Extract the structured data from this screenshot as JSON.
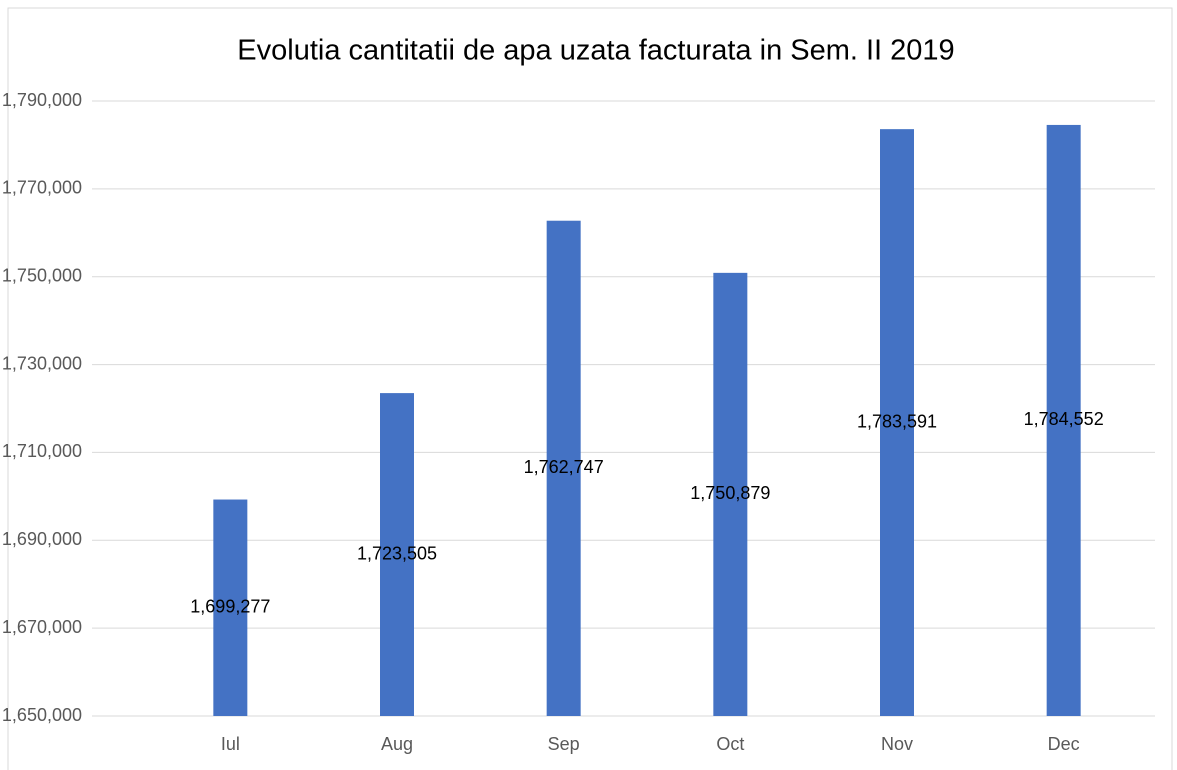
{
  "chart_data": {
    "type": "bar",
    "title": "Evolutia cantitatii de apa uzata facturata in Sem. II 2019",
    "categories": [
      "Iul",
      "Aug",
      "Sep",
      "Oct",
      "Nov",
      "Dec"
    ],
    "values": [
      1699277,
      1723505,
      1762747,
      1750879,
      1783591,
      1784552
    ],
    "value_labels": [
      "1,699,277",
      "1,723,505",
      "1,762,747",
      "1,750,879",
      "1,783,591",
      "1,784,552"
    ],
    "color": "#4472c4",
    "ylim": [
      1650000,
      1790000
    ],
    "yticks": [
      {
        "value": 1650000,
        "label": "1,650,000"
      },
      {
        "value": 1670000,
        "label": "1,670,000"
      },
      {
        "value": 1690000,
        "label": "1,690,000"
      },
      {
        "value": 1710000,
        "label": "1,710,000"
      },
      {
        "value": 1730000,
        "label": "1,730,000"
      },
      {
        "value": 1750000,
        "label": "1,750,000"
      },
      {
        "value": 1770000,
        "label": "1,770,000"
      },
      {
        "value": 1790000,
        "label": "1,790,000"
      }
    ],
    "grid": true
  }
}
